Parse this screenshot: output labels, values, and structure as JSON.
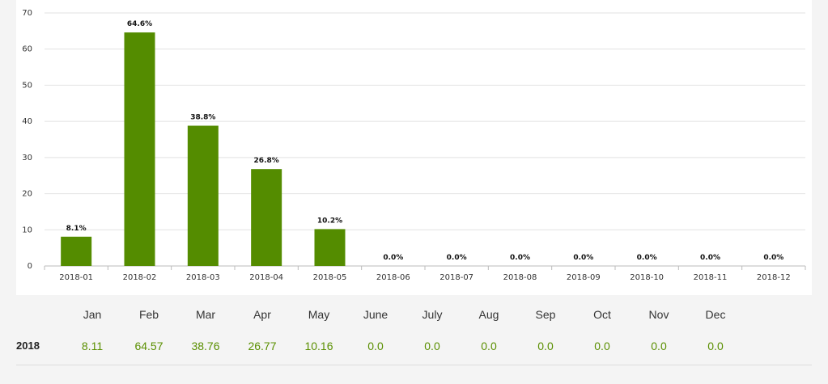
{
  "chart_data": {
    "type": "bar",
    "categories": [
      "2018-01",
      "2018-02",
      "2018-03",
      "2018-04",
      "2018-05",
      "2018-06",
      "2018-07",
      "2018-08",
      "2018-09",
      "2018-10",
      "2018-11",
      "2018-12"
    ],
    "values": [
      8.1,
      64.6,
      38.8,
      26.8,
      10.2,
      0,
      0,
      0,
      0,
      0,
      0,
      0
    ],
    "data_labels": [
      "8.1%",
      "64.6%",
      "38.8%",
      "26.8%",
      "10.2%",
      "0.0%",
      "0.0%",
      "0.0%",
      "0.0%",
      "0.0%",
      "0.0%",
      "0.0%"
    ],
    "ylim": [
      0,
      70
    ],
    "yticks": [
      0,
      10,
      20,
      30,
      40,
      50,
      60,
      70
    ],
    "bar_color": "#548c00",
    "grid": true,
    "title": "",
    "xlabel": "",
    "ylabel": ""
  },
  "table": {
    "year": "2018",
    "months": [
      "Jan",
      "Feb",
      "Mar",
      "Apr",
      "May",
      "June",
      "July",
      "Aug",
      "Sep",
      "Oct",
      "Nov",
      "Dec"
    ],
    "values": [
      "8.11",
      "64.57",
      "38.76",
      "26.77",
      "10.16",
      "0.0",
      "0.0",
      "0.0",
      "0.0",
      "0.0",
      "0.0",
      "0.0"
    ]
  }
}
